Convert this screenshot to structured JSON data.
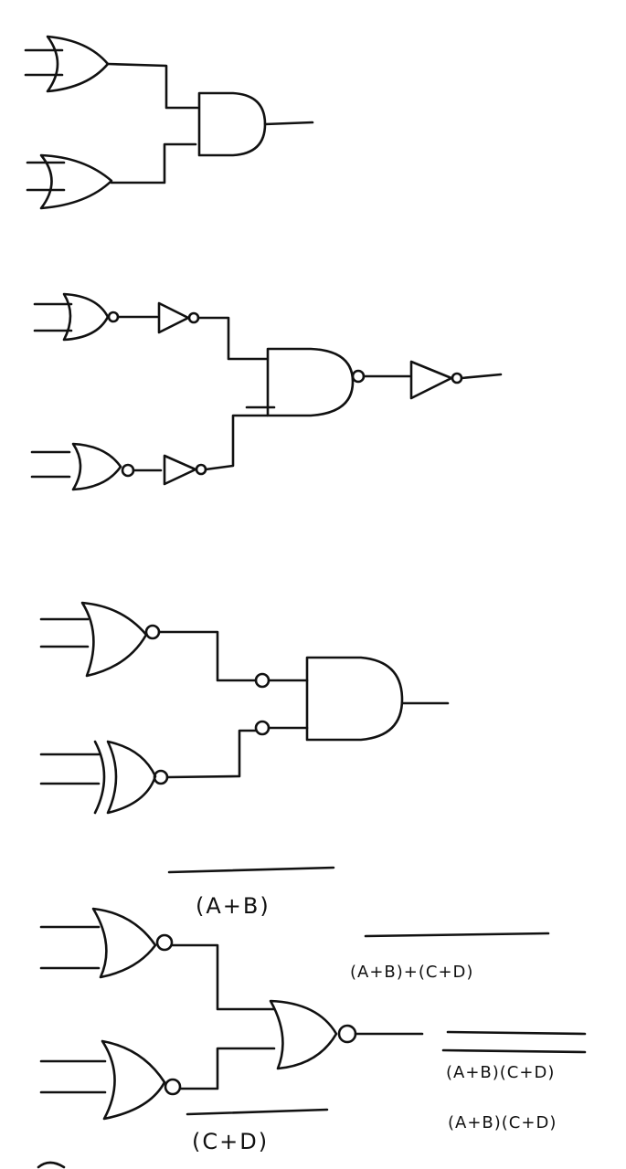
{
  "ink_color": "#111111",
  "background": "#ffffff",
  "labels": {
    "nor_top": "(A+B)",
    "nor_bottom": "(C+D)",
    "output_sum": "(A+B)+(C+D)",
    "output_product_bar": "(A+B)(C+D)",
    "output_product": "(A+B)(C+D)"
  }
}
